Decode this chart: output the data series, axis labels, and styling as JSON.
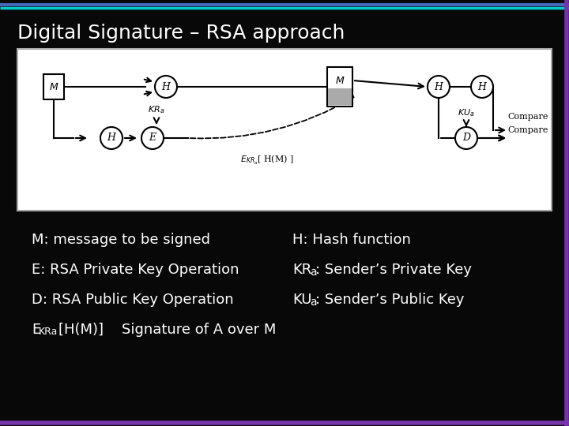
{
  "title": "Digital Signature – RSA approach",
  "bg_color": "#080808",
  "title_color": "#ffffff",
  "title_fontsize": 18,
  "border_top_color1": "#4466bb",
  "border_top_color2": "#00cccc",
  "border_right_color": "#7733aa",
  "border_bottom_color": "#7733aa",
  "diagram_bg": "#ffffff",
  "diagram_border": "#999999",
  "line1_left": "M: message to be signed",
  "line1_right": "H: Hash function",
  "line2_left": "E: RSA Private Key Operation",
  "line2_right": "KR",
  "line2_right_sub": "a",
  "line2_right_rest": ": Sender’s Private Key",
  "line3_left": "D: RSA Public Key Operation",
  "line3_right": "KU",
  "line3_right_sub": "a",
  "line3_right_rest": ": Sender’s Public Key",
  "line4_pre": "E",
  "line4_sub": "KRa",
  "line4_rest": "[H(M)]    Signature of A over M",
  "text_fontsize": 13,
  "text_color": "#ffffff"
}
